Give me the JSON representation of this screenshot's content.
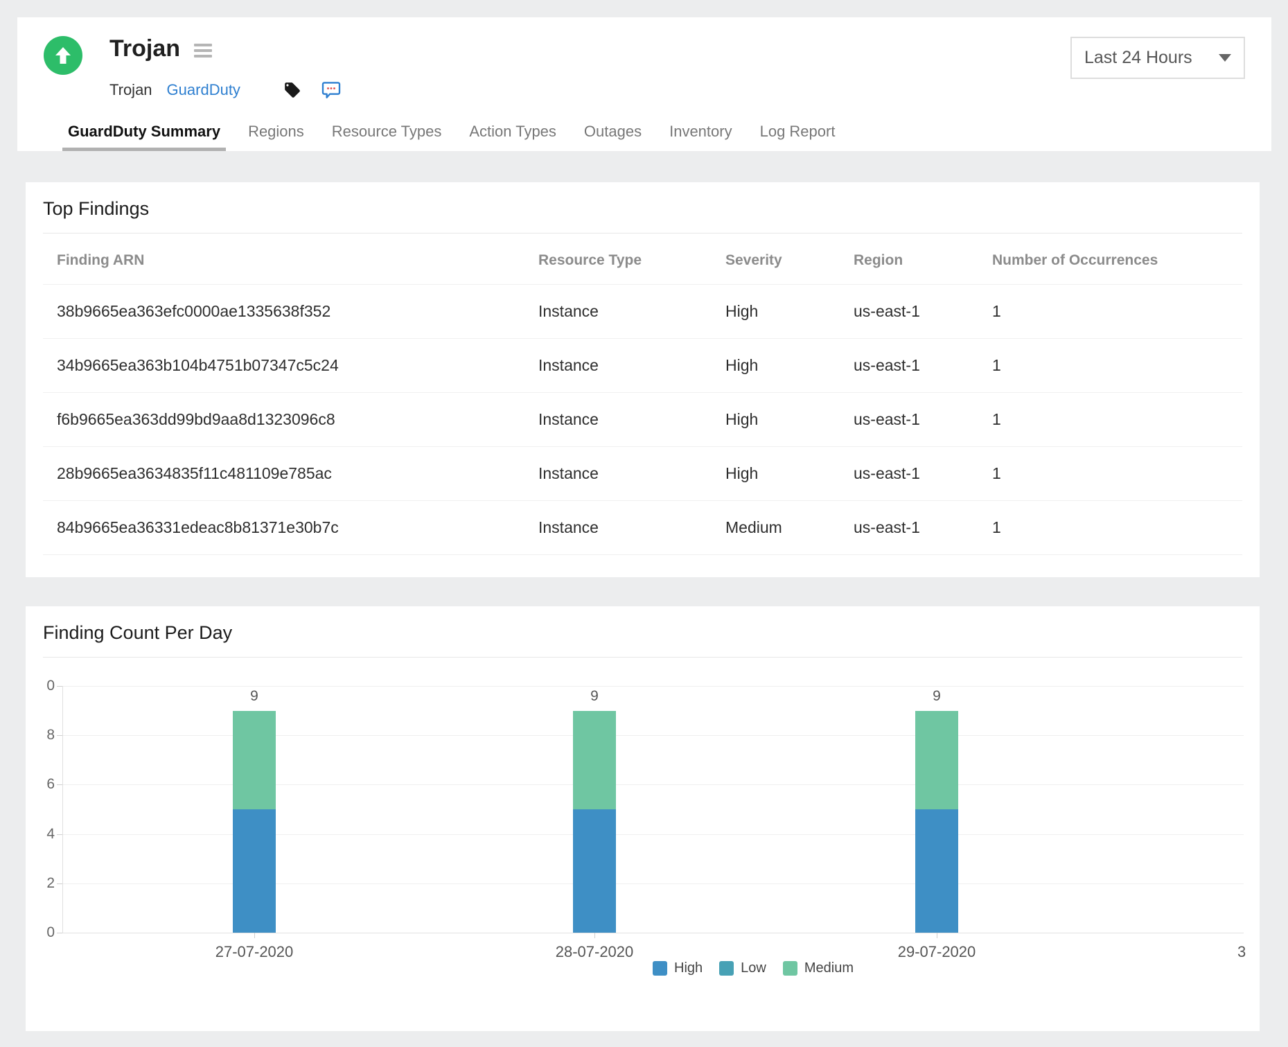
{
  "header": {
    "title": "Trojan",
    "breadcrumb": {
      "monitor": "Trojan",
      "service": "GuardDuty"
    },
    "time_range": "Last 24 Hours",
    "tabs": [
      {
        "label": "GuardDuty Summary",
        "active": true
      },
      {
        "label": "Regions",
        "active": false
      },
      {
        "label": "Resource Types",
        "active": false
      },
      {
        "label": "Action Types",
        "active": false
      },
      {
        "label": "Outages",
        "active": false
      },
      {
        "label": "Inventory",
        "active": false
      },
      {
        "label": "Log Report",
        "active": false
      }
    ],
    "icons": {
      "status": "up-arrow-circle",
      "menu": "hamburger-menu",
      "tag": "tag",
      "comment": "comment-bubble-with-dots",
      "dropdown_caret": "caret-down"
    }
  },
  "top_findings": {
    "title": "Top Findings",
    "columns": [
      "Finding ARN",
      "Resource Type",
      "Severity",
      "Region",
      "Number of Occurrences"
    ],
    "rows": [
      [
        "38b9665ea363efc0000ae1335638f352",
        "Instance",
        "High",
        "us-east-1",
        "1"
      ],
      [
        "34b9665ea363b104b4751b07347c5c24",
        "Instance",
        "High",
        "us-east-1",
        "1"
      ],
      [
        "f6b9665ea363dd99bd9aa8d1323096c8",
        "Instance",
        "High",
        "us-east-1",
        "1"
      ],
      [
        "28b9665ea3634835f11c481109e785ac",
        "Instance",
        "High",
        "us-east-1",
        "1"
      ],
      [
        "84b9665ea36331edeac8b81371e30b7c",
        "Instance",
        "Medium",
        "us-east-1",
        "1"
      ]
    ]
  },
  "chart_card": {
    "title": "Finding Count Per Day"
  },
  "chart_data": {
    "type": "bar",
    "stacked": true,
    "title": "Finding Count Per Day",
    "categories": [
      "27-07-2020",
      "28-07-2020",
      "29-07-2020"
    ],
    "series": [
      {
        "name": "High",
        "color": "#3e8fc5",
        "values": [
          5,
          5,
          5
        ]
      },
      {
        "name": "Low",
        "color": "#47a1b5",
        "values": [
          0,
          0,
          0
        ]
      },
      {
        "name": "Medium",
        "color": "#6fc6a2",
        "values": [
          4,
          4,
          4
        ]
      }
    ],
    "bar_total_labels": [
      "9",
      "9",
      "9"
    ],
    "ylim": [
      0,
      10
    ],
    "ytick_labels_top_to_bottom": [
      "0",
      "8",
      "6",
      "4",
      "2",
      "0"
    ],
    "partial_next_category_label": "3",
    "grid": true,
    "legend_position": "bottom",
    "legend": [
      {
        "label": "High",
        "color": "#3e8fc5"
      },
      {
        "label": "Low",
        "color": "#47a1b5"
      },
      {
        "label": "Medium",
        "color": "#6fc6a2"
      }
    ]
  },
  "colors": {
    "status_green": "#2dbd69",
    "link_blue": "#2e7fd0",
    "high_blue": "#3e8fc5",
    "low_teal": "#47a1b5",
    "medium_green": "#6fc6a2",
    "active_tab_underline": "#b1b1b1"
  }
}
